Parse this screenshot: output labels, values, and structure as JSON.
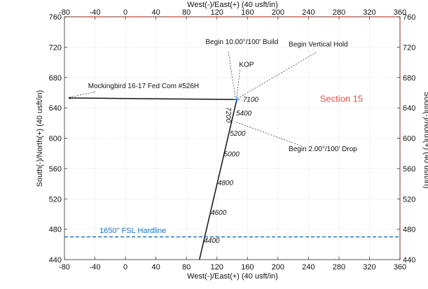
{
  "chart_data": {
    "type": "well-plan-plot",
    "x_axis_label_top": "West(-)/East(+) (40 usft/in)",
    "x_axis_label_bottom": "West(-)/East(+) (40 usft/in)",
    "y_axis_label_left": "South(-)/North(+) (40 usft/in)",
    "y_axis_label_right": "South(-)/North(+) (40 usft/in)",
    "xlim": [
      -80,
      360
    ],
    "ylim": [
      440,
      760
    ],
    "x_ticks": [
      -80,
      -40,
      0,
      40,
      80,
      120,
      160,
      200,
      240,
      280,
      320,
      360
    ],
    "y_ticks": [
      440,
      480,
      520,
      560,
      600,
      640,
      680,
      720,
      760
    ],
    "grid": true,
    "colors": {
      "wellpath": "#111111",
      "hardline": "#1a73c8",
      "section": "#d9534f",
      "border_right": "#c0392b",
      "border_top": "#c0392b"
    },
    "wellpath": {
      "lateral": {
        "from": [
          -73,
          653
        ],
        "to": [
          146,
          651
        ]
      },
      "vertical": {
        "from": [
          97,
          440
        ],
        "to": [
          146,
          651
        ]
      }
    },
    "md_labels": [
      {
        "text": "4400",
        "x": 103,
        "y": 462
      },
      {
        "text": "4600",
        "x": 112,
        "y": 499
      },
      {
        "text": "4800",
        "x": 121,
        "y": 538
      },
      {
        "text": "5000",
        "x": 129,
        "y": 576
      },
      {
        "text": "5200",
        "x": 137,
        "y": 603
      },
      {
        "text": "5400",
        "x": 145,
        "y": 630
      },
      {
        "text": "7200",
        "x": 132,
        "y": 641
      },
      {
        "text": "7100",
        "x": 154,
        "y": 648
      }
    ],
    "annotations": [
      {
        "text": "Begin 10.00°/100' Build",
        "x": 105,
        "y": 724
      },
      {
        "text": "Begin Vertical Hold",
        "x": 214,
        "y": 721
      },
      {
        "text": "KOP",
        "x": 149,
        "y": 694
      },
      {
        "text": "Mockingbird 16-17 Fed Com #526H",
        "x": -49,
        "y": 666
      },
      {
        "text": "Begin 2.00°/100' Drop",
        "x": 214,
        "y": 583
      }
    ],
    "section_label": {
      "text": "Section 15",
      "x": 255,
      "y": 648
    },
    "hardline": {
      "label": "1650\" FSL Hardline",
      "y": 470,
      "label_x": -34,
      "label_y": 475
    }
  }
}
